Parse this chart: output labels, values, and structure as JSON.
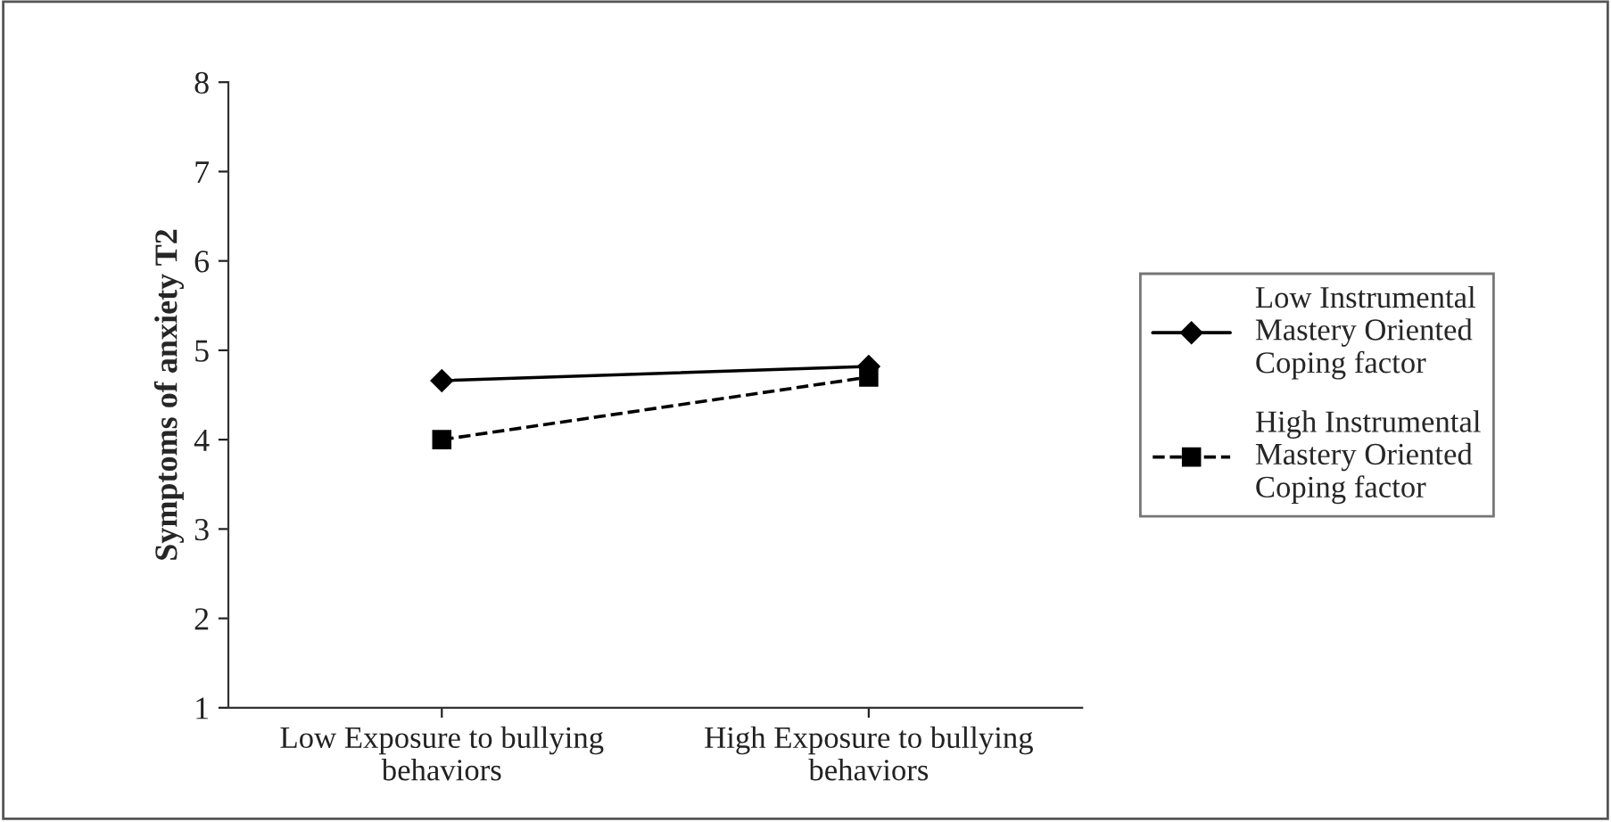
{
  "chart_data": {
    "type": "line",
    "ylabel": "Symptoms of anxiety T2",
    "categories": [
      "Low Exposure to bullying\nbehaviors",
      "High Exposure to bullying\nbehaviors"
    ],
    "series": [
      {
        "name": "Low Instrumental\nMastery Oriented\nCoping factor",
        "color": "#000000",
        "values": [
          4.66,
          4.82
        ],
        "marker": "diamond",
        "line_style": "solid"
      },
      {
        "name": "High Instrumental\nMastery Oriented\nCoping factor",
        "color": "#000000",
        "values": [
          4.0,
          4.7
        ],
        "marker": "square",
        "line_style": "dashed"
      }
    ],
    "ylim": [
      1,
      8
    ],
    "yticks": [
      1,
      2,
      3,
      4,
      5,
      6,
      7,
      8
    ],
    "grid": false,
    "legend": "right"
  }
}
